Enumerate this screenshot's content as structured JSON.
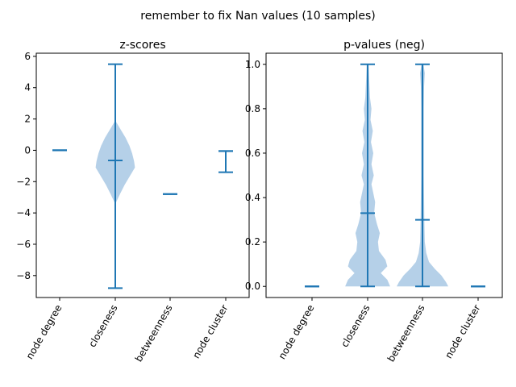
{
  "suptitle": "remember to fix Nan values (10 samples)",
  "chart_data": [
    {
      "type": "violin",
      "title": "z-scores",
      "categories": [
        "node degree",
        "closeness",
        "betweenness",
        "node cluster"
      ],
      "ylim": [
        -9.4,
        6.2
      ],
      "yticks": [
        -8,
        -6,
        -4,
        -2,
        0,
        2,
        4,
        6
      ],
      "ytick_labels": [
        "−8",
        "−6",
        "−4",
        "−2",
        "0",
        "2",
        "4",
        "6"
      ],
      "violins": [
        {
          "category": "node degree",
          "min": 0.0,
          "max": 0.0,
          "median": 0.0,
          "density": []
        },
        {
          "category": "closeness",
          "min": -8.8,
          "max": 5.5,
          "median": -0.65,
          "density": [
            [
              -3.3,
              0.02
            ],
            [
              -2.8,
              0.1
            ],
            [
              -2.2,
              0.2
            ],
            [
              -1.6,
              0.32
            ],
            [
              -1.1,
              0.42
            ],
            [
              -0.7,
              0.4
            ],
            [
              -0.2,
              0.36
            ],
            [
              0.3,
              0.3
            ],
            [
              0.8,
              0.22
            ],
            [
              1.3,
              0.12
            ],
            [
              1.8,
              0.02
            ]
          ]
        },
        {
          "category": "betweenness",
          "min": -2.8,
          "max": -2.8,
          "median": -2.8,
          "density": []
        },
        {
          "category": "node cluster",
          "min": -1.4,
          "max": -0.05,
          "median": -0.05,
          "density": []
        }
      ],
      "grid": false,
      "color": "#1f77b4",
      "fill_color": "#a8c8e4"
    },
    {
      "type": "violin",
      "title": "p-values (neg)",
      "categories": [
        "node degree",
        "closeness",
        "betweenness",
        "node cluster"
      ],
      "ylim": [
        -0.05,
        1.05
      ],
      "yticks": [
        0.0,
        0.2,
        0.4,
        0.6,
        0.8,
        1.0
      ],
      "ytick_labels": [
        "0.0",
        "0.2",
        "0.4",
        "0.6",
        "0.8",
        "1.0"
      ],
      "violins": [
        {
          "category": "node degree",
          "min": 0.0,
          "max": 0.0,
          "median": 0.0,
          "density": []
        },
        {
          "category": "closeness",
          "min": 0.0,
          "max": 1.0,
          "median": 0.33,
          "density": [
            [
              0.0,
              0.48
            ],
            [
              0.03,
              0.42
            ],
            [
              0.06,
              0.28
            ],
            [
              0.09,
              0.42
            ],
            [
              0.12,
              0.38
            ],
            [
              0.16,
              0.24
            ],
            [
              0.2,
              0.22
            ],
            [
              0.24,
              0.26
            ],
            [
              0.28,
              0.2
            ],
            [
              0.33,
              0.14
            ],
            [
              0.38,
              0.16
            ],
            [
              0.42,
              0.12
            ],
            [
              0.46,
              0.08
            ],
            [
              0.5,
              0.13
            ],
            [
              0.55,
              0.08
            ],
            [
              0.6,
              0.12
            ],
            [
              0.65,
              0.07
            ],
            [
              0.7,
              0.11
            ],
            [
              0.75,
              0.06
            ],
            [
              0.8,
              0.08
            ],
            [
              0.85,
              0.05
            ],
            [
              0.9,
              0.04
            ],
            [
              0.95,
              0.03
            ],
            [
              1.0,
              0.02
            ]
          ]
        },
        {
          "category": "betweenness",
          "min": 0.0,
          "max": 1.0,
          "median": 0.3,
          "density": [
            [
              0.0,
              0.55
            ],
            [
              0.02,
              0.5
            ],
            [
              0.05,
              0.4
            ],
            [
              0.08,
              0.26
            ],
            [
              0.11,
              0.14
            ],
            [
              0.15,
              0.08
            ],
            [
              0.2,
              0.05
            ],
            [
              0.3,
              0.04
            ],
            [
              0.4,
              0.035
            ],
            [
              0.5,
              0.03
            ],
            [
              0.6,
              0.03
            ],
            [
              0.7,
              0.03
            ],
            [
              0.8,
              0.03
            ],
            [
              0.9,
              0.035
            ],
            [
              0.96,
              0.05
            ],
            [
              1.0,
              0.02
            ]
          ]
        },
        {
          "category": "node cluster",
          "min": 0.0,
          "max": 0.0,
          "median": 0.0,
          "density": []
        }
      ],
      "grid": false,
      "color": "#1f77b4",
      "fill_color": "#a8c8e4"
    }
  ]
}
